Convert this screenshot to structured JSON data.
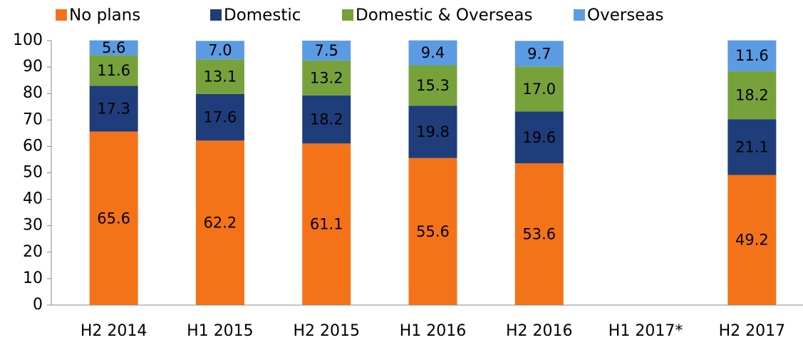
{
  "chart_data": {
    "type": "stacked_bar",
    "categories": [
      "H2 2014",
      "H1 2015",
      "H2 2015",
      "H1 2016",
      "H2 2016",
      "H1 2017*",
      "H2 2017"
    ],
    "series": [
      {
        "name": "No plans",
        "color": "#f47318",
        "values": [
          65.6,
          62.2,
          61.1,
          55.6,
          53.6,
          null,
          49.2
        ],
        "value_labels": [
          "65.6",
          "62.2",
          "61.1",
          "55.6",
          "53.6",
          null,
          "49.2"
        ]
      },
      {
        "name": "Domestic",
        "color": "#1f3d7a",
        "values": [
          17.3,
          17.6,
          18.2,
          19.8,
          19.6,
          null,
          21.1
        ],
        "value_labels": [
          "17.3",
          "17.6",
          "18.2",
          "19.8",
          "19.6",
          null,
          "21.1"
        ]
      },
      {
        "name": "Domestic & Overseas",
        "color": "#77a23b",
        "values": [
          11.6,
          13.1,
          13.2,
          15.3,
          17.0,
          null,
          18.2
        ],
        "value_labels": [
          "11.6",
          "13.1",
          "13.2",
          "15.3",
          "17.0",
          null,
          "18.2"
        ]
      },
      {
        "name": "Overseas",
        "color": "#5b9be3",
        "values": [
          5.6,
          7.0,
          7.5,
          9.4,
          9.7,
          null,
          11.6
        ],
        "value_labels": [
          "5.6",
          "7.0",
          "7.5",
          "9.4",
          "9.7",
          null,
          "11.6"
        ]
      }
    ],
    "ylim": [
      0,
      100
    ],
    "yticks": [
      0,
      10,
      20,
      30,
      40,
      50,
      60,
      70,
      80,
      90,
      100
    ],
    "grid": false,
    "legend": "top"
  }
}
